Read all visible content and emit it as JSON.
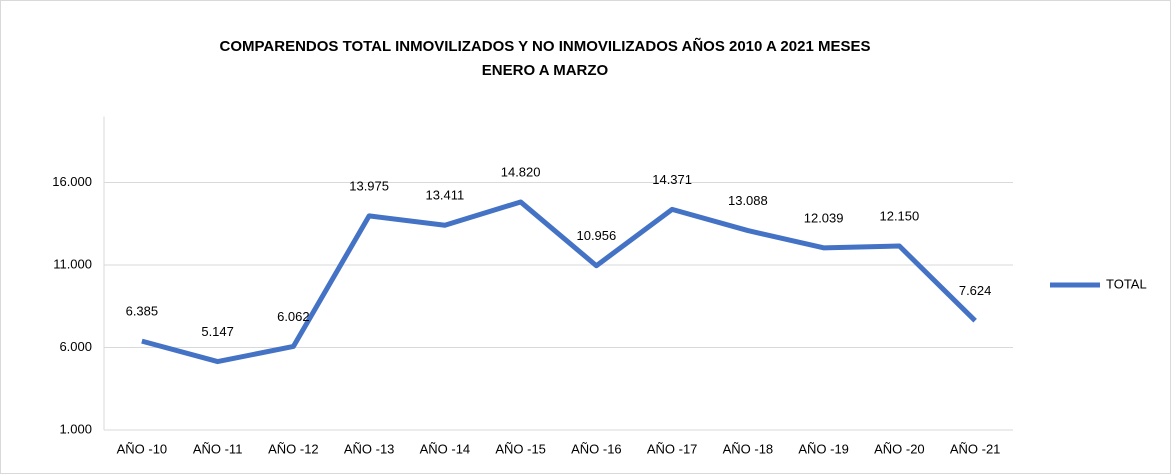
{
  "chart_data": {
    "type": "line",
    "title": [
      "COMPARENDOS TOTAL INMOVILIZADOS Y NO INMOVILIZADOS AÑOS 2010 A 2021 MESES",
      "ENERO A MARZO"
    ],
    "categories": [
      "AÑO -10",
      "AÑO -11",
      "AÑO -12",
      "AÑO -13",
      "AÑO -14",
      "AÑO -15",
      "AÑO -16",
      "AÑO -17",
      "AÑO -18",
      "AÑO -19",
      "AÑO -20",
      "AÑO -21"
    ],
    "series": [
      {
        "name": "TOTAL",
        "color": "#4472c4",
        "values": [
          6385,
          5147,
          6062,
          13975,
          13411,
          14820,
          10956,
          14371,
          13088,
          12039,
          12150,
          7624
        ],
        "value_labels": [
          "6.385",
          "5.147",
          "6.062",
          "13.975",
          "13.411",
          "14.820",
          "10.956",
          "14.371",
          "13.088",
          "12.039",
          "12.150",
          "7.624"
        ]
      }
    ],
    "ylim": [
      1000,
      20000
    ],
    "yticks": [
      {
        "value": 1000,
        "label": "1.000"
      },
      {
        "value": 6000,
        "label": "6.000"
      },
      {
        "value": 11000,
        "label": "11.000"
      },
      {
        "value": 16000,
        "label": "16.000"
      }
    ],
    "grid": true,
    "legend": "right"
  }
}
